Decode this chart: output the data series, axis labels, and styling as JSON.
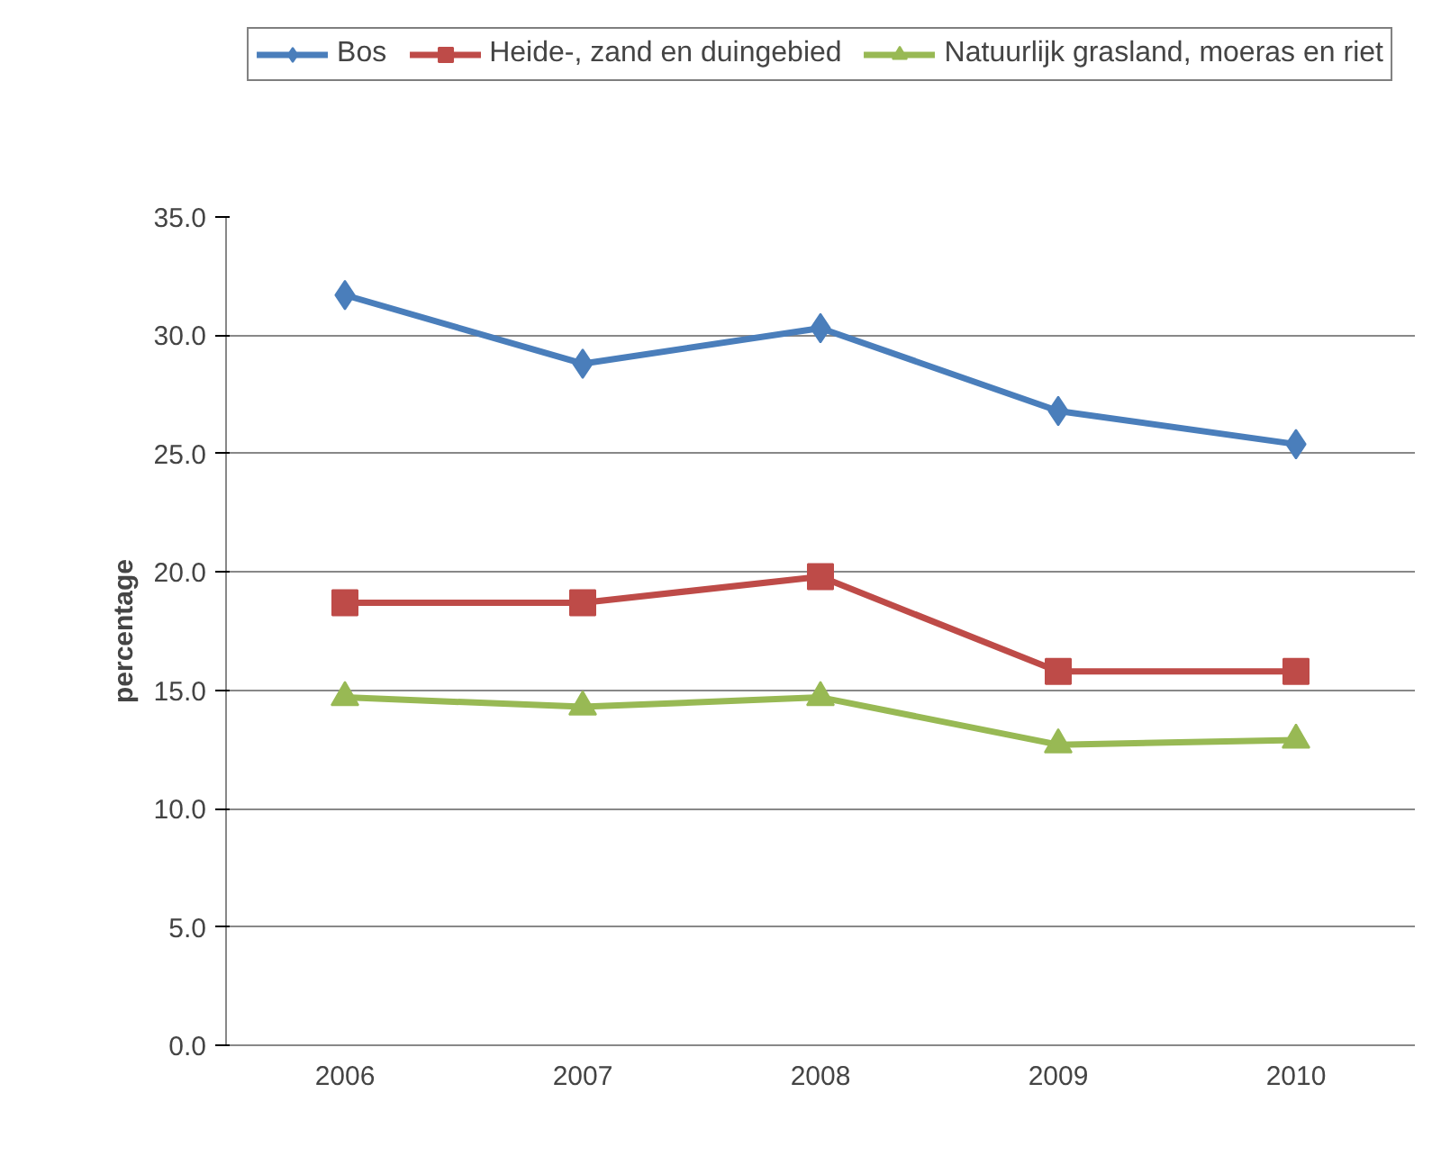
{
  "chart_data": {
    "type": "line",
    "ylabel": "percentage",
    "categories": [
      "2006",
      "2007",
      "2008",
      "2009",
      "2010"
    ],
    "series": [
      {
        "name": "Bos",
        "color": "#4a7ebb",
        "marker": "diamond",
        "values": [
          31.7,
          28.8,
          30.3,
          26.8,
          25.4
        ]
      },
      {
        "name": "Heide-, zand en duingebied",
        "color": "#be4b48",
        "marker": "square",
        "values": [
          18.7,
          18.7,
          19.8,
          15.8,
          15.8
        ]
      },
      {
        "name": "Natuurlijk grasland, moeras en riet",
        "color": "#98b954",
        "marker": "triangle",
        "values": [
          14.7,
          14.3,
          14.7,
          12.7,
          12.9
        ]
      }
    ],
    "ylim": [
      0,
      35
    ],
    "yticks": [
      {
        "value": 0,
        "label": "0.0"
      },
      {
        "value": 5,
        "label": "5.0"
      },
      {
        "value": 10,
        "label": "10.0"
      },
      {
        "value": 15,
        "label": "15.0"
      },
      {
        "value": 20,
        "label": "20.0"
      },
      {
        "value": 25,
        "label": "25.0"
      },
      {
        "value": 30,
        "label": "30.0"
      },
      {
        "value": 35,
        "label": "35.0"
      }
    ],
    "grid": "y",
    "legend": "top",
    "line_style": "solid"
  }
}
